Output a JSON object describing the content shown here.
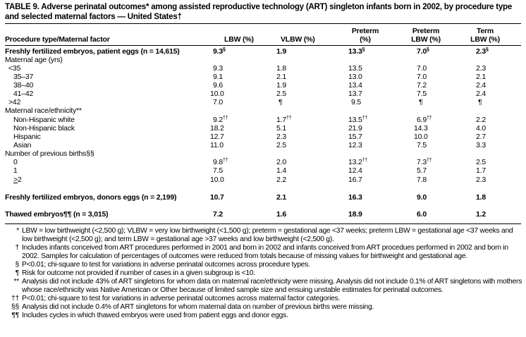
{
  "title": "TABLE 9. Adverse perinatal outcomes* among assisted reproductive technology (ART) singleton infants born in 2002, by procedure type and selected maternal factors — United States†",
  "columns": [
    "Procedure type/Maternal factor",
    "LBW (%)",
    "VLBW (%)",
    "Preterm (%)",
    "Preterm LBW (%)",
    "Term LBW (%)"
  ],
  "rows": [
    {
      "label": "Freshly fertilized embryos, patient eggs (n = 14,615)",
      "type": "bold",
      "values": [
        [
          "9.3",
          "§"
        ],
        [
          "1.9",
          ""
        ],
        [
          "13.3",
          "§"
        ],
        [
          "7.0",
          "§"
        ],
        [
          "2.3",
          "§"
        ]
      ]
    },
    {
      "label": "Maternal age (yrs)",
      "type": "group"
    },
    {
      "label": "<35",
      "type": "sub1",
      "values": [
        [
          "9.3",
          ""
        ],
        [
          "1.8",
          ""
        ],
        [
          "13.5",
          ""
        ],
        [
          "7.0",
          ""
        ],
        [
          "2.3",
          ""
        ]
      ]
    },
    {
      "label": "35–37",
      "type": "sub",
      "values": [
        [
          "9.1",
          ""
        ],
        [
          "2.1",
          ""
        ],
        [
          "13.0",
          ""
        ],
        [
          "7.0",
          ""
        ],
        [
          "2.1",
          ""
        ]
      ]
    },
    {
      "label": "38–40",
      "type": "sub",
      "values": [
        [
          "9.6",
          ""
        ],
        [
          "1.9",
          ""
        ],
        [
          "13.4",
          ""
        ],
        [
          "7.2",
          ""
        ],
        [
          "2.4",
          ""
        ]
      ]
    },
    {
      "label": "41–42",
      "type": "sub",
      "values": [
        [
          "10.0",
          ""
        ],
        [
          "2.5",
          ""
        ],
        [
          "13.7",
          ""
        ],
        [
          "7.5",
          ""
        ],
        [
          "2.4",
          ""
        ]
      ]
    },
    {
      "label": ">42",
      "type": "sub1",
      "values": [
        [
          "7.0",
          ""
        ],
        [
          "¶",
          ""
        ],
        [
          "9.5",
          ""
        ],
        [
          "¶",
          ""
        ],
        [
          "¶",
          ""
        ]
      ]
    },
    {
      "label": "Maternal race/ethnicity**",
      "type": "group"
    },
    {
      "label": "Non-Hispanic white",
      "type": "sub",
      "values": [
        [
          "9.2",
          "††"
        ],
        [
          "1.7",
          "††"
        ],
        [
          "13.5",
          "††"
        ],
        [
          "6.9",
          "††"
        ],
        [
          "2.2",
          ""
        ]
      ]
    },
    {
      "label": "Non-Hispanic black",
      "type": "sub",
      "values": [
        [
          "18.2",
          ""
        ],
        [
          "5.1",
          ""
        ],
        [
          "21.9",
          ""
        ],
        [
          "14.3",
          ""
        ],
        [
          "4.0",
          ""
        ]
      ]
    },
    {
      "label": "Hispanic",
      "type": "sub",
      "values": [
        [
          "12.7",
          ""
        ],
        [
          "2.3",
          ""
        ],
        [
          "15.7",
          ""
        ],
        [
          "10.0",
          ""
        ],
        [
          "2.7",
          ""
        ]
      ]
    },
    {
      "label": "Asian",
      "type": "sub",
      "values": [
        [
          "11.0",
          ""
        ],
        [
          "2.5",
          ""
        ],
        [
          "12.3",
          ""
        ],
        [
          "7.5",
          ""
        ],
        [
          "3.3",
          ""
        ]
      ]
    },
    {
      "label": "Number of previous births§§",
      "type": "group"
    },
    {
      "label": "0",
      "type": "sub",
      "values": [
        [
          "9.8",
          "††"
        ],
        [
          "2.0",
          ""
        ],
        [
          "13.2",
          "††"
        ],
        [
          "7.3",
          "††"
        ],
        [
          "2.5",
          ""
        ]
      ]
    },
    {
      "label": "1",
      "type": "sub",
      "values": [
        [
          "7.5",
          ""
        ],
        [
          "1.4",
          ""
        ],
        [
          "12.4",
          ""
        ],
        [
          "5.7",
          ""
        ],
        [
          "1.7",
          ""
        ]
      ]
    },
    {
      "label": ">2",
      "type": "sub",
      "underline": true,
      "values": [
        [
          "10.0",
          ""
        ],
        [
          "2.2",
          ""
        ],
        [
          "16.7",
          ""
        ],
        [
          "7.8",
          ""
        ],
        [
          "2.3",
          ""
        ]
      ]
    },
    {
      "label": "",
      "type": "blank"
    },
    {
      "label": "Freshly fertilized embryos, donors eggs (n = 2,199)",
      "type": "bold",
      "values": [
        [
          "10.7",
          ""
        ],
        [
          "2.1",
          ""
        ],
        [
          "16.3",
          ""
        ],
        [
          "9.0",
          ""
        ],
        [
          "1.8",
          ""
        ]
      ]
    },
    {
      "label": "",
      "type": "blank"
    },
    {
      "label": "Thawed embryos¶¶ (n = 3,015)",
      "type": "bold",
      "values": [
        [
          "7.2",
          ""
        ],
        [
          "1.6",
          ""
        ],
        [
          "18.9",
          ""
        ],
        [
          "6.0",
          ""
        ],
        [
          "1.2",
          ""
        ]
      ]
    }
  ],
  "footnotes": [
    {
      "mark": "*",
      "text": "LBW = low birthweight (<2,500 g); VLBW = very low birthweight (<1,500 g); preterm = gestational age <37 weeks; preterm LBW = gestational age <37 weeks and low birthweight (<2,500 g); and term LBW = gestational age >37 weeks and low birthweight (<2,500 g)."
    },
    {
      "mark": "†",
      "text": "Includes infants conceived from ART procedures performed in 2001 and born in 2002 and infants conceived from ART procedues performed in 2002 and born in 2002. Samples for calculation of percentages of outcomes were reduced from totals because of missing values for birthweight and gestational age."
    },
    {
      "mark": "§",
      "text": "P<0.01; chi-square to test for variations in adverse perinatal outcomes across procedure types."
    },
    {
      "mark": "¶",
      "text": "Risk for outcome not provided if number of cases in a given subgroup is <10."
    },
    {
      "mark": "**",
      "text": "Analysis did not include 43% of ART singletons for whom data on maternal race/ethnicity were missing. Analysis did not include 0.1% of ART singletons with mothers whose race/ethnicity was Native American or Other because of limited sample size and ensuing unstable estimates for perinatal outcomes."
    },
    {
      "mark": "††",
      "text": "P<0.01; chi-square to test for variations in adverse perinatal outcomes across maternal factor categories."
    },
    {
      "mark": "§§",
      "text": "Analysis did not include 0.4% of ART singletons for whom maternal data on number of previous births were missing."
    },
    {
      "mark": "¶¶",
      "text": "Includes cycles in which thawed embryos were used from patient eggs and donor eggs."
    }
  ]
}
